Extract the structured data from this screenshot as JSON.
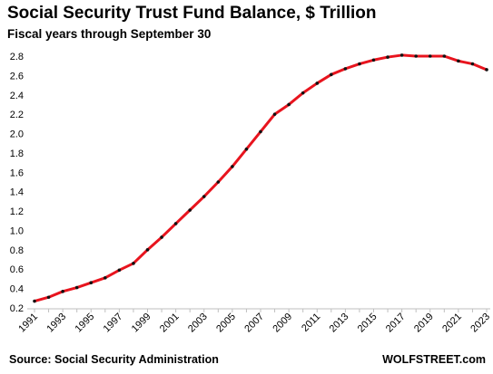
{
  "chart_data": {
    "type": "line",
    "title": "Social Security Trust Fund Balance, $ Trillion",
    "subtitle": "Fiscal years through September 30",
    "x": [
      1991,
      1992,
      1993,
      1994,
      1995,
      1996,
      1997,
      1998,
      1999,
      2000,
      2001,
      2002,
      2003,
      2004,
      2005,
      2006,
      2007,
      2008,
      2009,
      2010,
      2011,
      2012,
      2013,
      2014,
      2015,
      2016,
      2017,
      2018,
      2019,
      2020,
      2021,
      2022,
      2023
    ],
    "series": [
      {
        "values": [
          0.27,
          0.31,
          0.37,
          0.41,
          0.46,
          0.51,
          0.59,
          0.66,
          0.8,
          0.93,
          1.07,
          1.21,
          1.35,
          1.5,
          1.66,
          1.84,
          2.02,
          2.2,
          2.3,
          2.42,
          2.52,
          2.61,
          2.67,
          2.72,
          2.76,
          2.79,
          2.81,
          2.8,
          2.8,
          2.8,
          2.75,
          2.72,
          2.66
        ],
        "line_color": "#e8141e",
        "marker_color": "#111111"
      }
    ],
    "ylim": [
      0.2,
      2.8
    ],
    "yticks": [
      "0.2",
      "0.4",
      "0.6",
      "0.8",
      "1.0",
      "1.2",
      "1.4",
      "1.6",
      "1.8",
      "2.0",
      "2.2",
      "2.4",
      "2.6",
      "2.8"
    ],
    "xticks": [
      "1991",
      "1993",
      "1995",
      "1997",
      "1999",
      "2001",
      "2003",
      "2005",
      "2007",
      "2009",
      "2011",
      "2013",
      "2015",
      "2017",
      "2019",
      "2021",
      "2023"
    ],
    "grid": false,
    "legend": "none"
  },
  "footer": {
    "source": "Source: Social Security Administration",
    "brand": "WOLFSTREET.com"
  }
}
